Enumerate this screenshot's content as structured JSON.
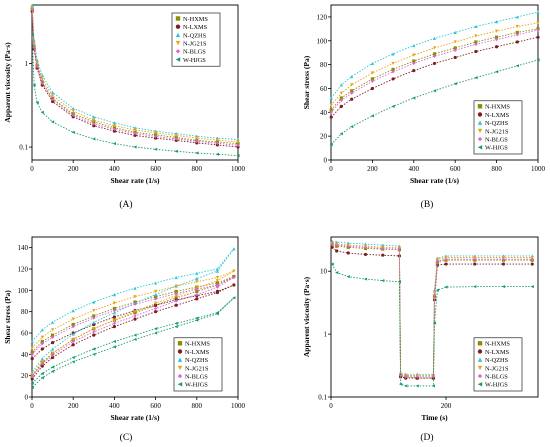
{
  "series_styles": [
    {
      "name": "N-HXMS",
      "color": "#8c8c00",
      "marker": "square"
    },
    {
      "name": "N-LXMS",
      "color": "#7a2020",
      "marker": "circle"
    },
    {
      "name": "N-QZHS",
      "color": "#27c7d7",
      "marker": "triangle-up"
    },
    {
      "name": "N-JG21S",
      "color": "#e8a317",
      "marker": "triangle-down"
    },
    {
      "name": "N-BLGS",
      "color": "#e060e0",
      "marker": "diamond"
    },
    {
      "name": "W-HJGS",
      "color": "#169c6e",
      "marker": "triangle-left"
    }
  ],
  "chart_data": [
    {
      "panel": "(A)",
      "type": "line",
      "xlabel": "Shear rate (1/s)",
      "ylabel": "Apparent viscosity (Pa·s)",
      "xlim": [
        0,
        1000
      ],
      "ylim": [
        0.07,
        5
      ],
      "yscale": "log",
      "xticks": [
        "0",
        "200",
        "400",
        "600",
        "800",
        "1000"
      ],
      "yticks": [
        {
          "v": 0.1,
          "label": "0.1"
        },
        {
          "v": 1,
          "label": "1"
        }
      ],
      "legend": "top-right",
      "series": [
        {
          "name": "N-HXMS",
          "x": [
            1,
            10,
            25,
            50,
            100,
            200,
            300,
            400,
            500,
            600,
            700,
            800,
            900,
            1000
          ],
          "values": [
            4.5,
            1.6,
            0.95,
            0.6,
            0.38,
            0.25,
            0.2,
            0.17,
            0.15,
            0.14,
            0.13,
            0.12,
            0.115,
            0.11
          ]
        },
        {
          "name": "N-LXMS",
          "x": [
            1,
            10,
            25,
            50,
            100,
            200,
            300,
            400,
            500,
            600,
            700,
            800,
            900,
            1000
          ],
          "values": [
            4.2,
            1.5,
            0.88,
            0.55,
            0.35,
            0.23,
            0.18,
            0.155,
            0.138,
            0.128,
            0.12,
            0.112,
            0.106,
            0.1
          ]
        },
        {
          "name": "N-QZHS",
          "x": [
            1,
            10,
            25,
            50,
            100,
            200,
            300,
            400,
            500,
            600,
            700,
            800,
            900,
            1000
          ],
          "values": [
            5.0,
            1.9,
            1.1,
            0.72,
            0.45,
            0.29,
            0.23,
            0.195,
            0.17,
            0.155,
            0.145,
            0.135,
            0.128,
            0.123
          ]
        },
        {
          "name": "N-JG21S",
          "x": [
            1,
            10,
            25,
            50,
            100,
            200,
            300,
            400,
            500,
            600,
            700,
            800,
            900,
            1000
          ],
          "values": [
            4.6,
            1.7,
            1.0,
            0.65,
            0.41,
            0.27,
            0.21,
            0.18,
            0.16,
            0.148,
            0.138,
            0.128,
            0.121,
            0.115
          ]
        },
        {
          "name": "N-BLGS",
          "x": [
            1,
            10,
            25,
            50,
            100,
            200,
            300,
            400,
            500,
            600,
            700,
            800,
            900,
            1000
          ],
          "values": [
            4.4,
            1.55,
            0.92,
            0.58,
            0.37,
            0.24,
            0.19,
            0.163,
            0.145,
            0.134,
            0.125,
            0.117,
            0.111,
            0.105
          ]
        },
        {
          "name": "W-HJGS",
          "x": [
            1,
            10,
            25,
            50,
            100,
            200,
            300,
            400,
            500,
            600,
            700,
            800,
            900,
            1000
          ],
          "values": [
            2.2,
            0.55,
            0.34,
            0.26,
            0.2,
            0.15,
            0.125,
            0.11,
            0.1,
            0.094,
            0.089,
            0.085,
            0.082,
            0.079
          ]
        }
      ]
    },
    {
      "panel": "(B)",
      "type": "line",
      "xlabel": "Shear rate (1/s)",
      "ylabel": "Shear stress (Pa)",
      "xlim": [
        0,
        1000
      ],
      "ylim": [
        0,
        130
      ],
      "xticks": [
        "0",
        "200",
        "400",
        "600",
        "800",
        "1000"
      ],
      "yticks": [
        {
          "v": 0,
          "label": "0"
        },
        {
          "v": 20,
          "label": "20"
        },
        {
          "v": 40,
          "label": "40"
        },
        {
          "v": 60,
          "label": "60"
        },
        {
          "v": 80,
          "label": "80"
        },
        {
          "v": 100,
          "label": "100"
        },
        {
          "v": 120,
          "label": "120"
        }
      ],
      "legend": "bottom-right",
      "series": [
        {
          "name": "N-HXMS",
          "x": [
            1,
            50,
            100,
            200,
            300,
            400,
            500,
            600,
            700,
            800,
            900,
            1000
          ],
          "values": [
            42,
            52,
            58,
            68,
            76,
            83,
            89,
            94,
            99,
            103,
            107,
            110
          ]
        },
        {
          "name": "N-LXMS",
          "x": [
            1,
            50,
            100,
            200,
            300,
            400,
            500,
            600,
            700,
            800,
            900,
            1000
          ],
          "values": [
            36,
            45,
            51,
            60,
            68,
            75,
            81,
            86,
            91,
            95,
            99,
            103
          ]
        },
        {
          "name": "N-QZHS",
          "x": [
            1,
            50,
            100,
            200,
            300,
            400,
            500,
            600,
            700,
            800,
            900,
            1000
          ],
          "values": [
            52,
            63,
            70,
            81,
            89,
            96,
            102,
            107,
            112,
            116,
            120,
            124
          ]
        },
        {
          "name": "N-JG21S",
          "x": [
            1,
            50,
            100,
            200,
            300,
            400,
            500,
            600,
            700,
            800,
            900,
            1000
          ],
          "values": [
            46,
            56,
            63,
            73,
            81,
            88,
            94,
            99,
            104,
            108,
            112,
            115
          ]
        },
        {
          "name": "N-BLGS",
          "x": [
            1,
            50,
            100,
            200,
            300,
            400,
            500,
            600,
            700,
            800,
            900,
            1000
          ],
          "values": [
            40,
            50,
            56,
            66,
            74,
            81,
            87,
            92,
            97,
            101,
            105,
            109
          ]
        },
        {
          "name": "W-HJGS",
          "x": [
            1,
            50,
            100,
            200,
            300,
            400,
            500,
            600,
            700,
            800,
            900,
            1000
          ],
          "values": [
            13,
            22,
            28,
            37,
            45,
            52,
            58,
            64,
            69,
            74,
            79,
            84
          ]
        }
      ]
    },
    {
      "panel": "(C)",
      "type": "line",
      "xlabel": "Shear rate (1/s)",
      "ylabel": "Shear stress (Pa)",
      "xlim": [
        0,
        1000
      ],
      "ylim": [
        0,
        150
      ],
      "xticks": [
        "0",
        "200",
        "400",
        "600",
        "800",
        "1000"
      ],
      "yticks": [
        {
          "v": 0,
          "label": "0"
        },
        {
          "v": 20,
          "label": "20"
        },
        {
          "v": 40,
          "label": "40"
        },
        {
          "v": 60,
          "label": "60"
        },
        {
          "v": 80,
          "label": "80"
        },
        {
          "v": 100,
          "label": "100"
        },
        {
          "v": 120,
          "label": "120"
        },
        {
          "v": 140,
          "label": "140"
        }
      ],
      "legend": "bottom-right",
      "series": [
        {
          "name": "N-HXMS",
          "x": [
            1,
            50,
            100,
            200,
            300,
            400,
            500,
            600,
            700,
            800,
            900,
            980,
            900,
            800,
            700,
            600,
            500,
            400,
            300,
            200,
            100,
            50,
            1
          ],
          "values": [
            42,
            52,
            58,
            68,
            76,
            83,
            89,
            94,
            99,
            103,
            107,
            113,
            105,
            99,
            93,
            86,
            79,
            72,
            64,
            54,
            41,
            32,
            20
          ]
        },
        {
          "name": "N-LXMS",
          "x": [
            1,
            50,
            100,
            200,
            300,
            400,
            500,
            600,
            700,
            800,
            900,
            980,
            900,
            800,
            700,
            600,
            500,
            400,
            300,
            200,
            100,
            50,
            1
          ],
          "values": [
            36,
            45,
            51,
            60,
            68,
            75,
            81,
            86,
            91,
            95,
            99,
            105,
            98,
            92,
            86,
            80,
            73,
            66,
            58,
            49,
            37,
            29,
            17
          ]
        },
        {
          "name": "N-QZHS",
          "x": [
            1,
            50,
            100,
            200,
            300,
            400,
            500,
            600,
            700,
            800,
            900,
            980,
            900,
            800,
            700,
            600,
            500,
            400,
            300,
            200,
            100,
            50,
            1
          ],
          "values": [
            52,
            63,
            70,
            81,
            89,
            96,
            102,
            107,
            112,
            116,
            120,
            139,
            118,
            111,
            104,
            96,
            88,
            79,
            70,
            59,
            45,
            36,
            23
          ]
        },
        {
          "name": "N-JG21S",
          "x": [
            1,
            50,
            100,
            200,
            300,
            400,
            500,
            600,
            700,
            800,
            900,
            980,
            900,
            800,
            700,
            600,
            500,
            400,
            300,
            200,
            100,
            50,
            1
          ],
          "values": [
            46,
            56,
            63,
            73,
            81,
            88,
            94,
            99,
            104,
            108,
            112,
            118,
            109,
            102,
            95,
            88,
            80,
            72,
            64,
            54,
            41,
            33,
            21
          ]
        },
        {
          "name": "N-BLGS",
          "x": [
            1,
            50,
            100,
            200,
            300,
            400,
            500,
            600,
            700,
            800,
            900,
            980,
            900,
            800,
            700,
            600,
            500,
            400,
            300,
            200,
            100,
            50,
            1
          ],
          "values": [
            40,
            50,
            56,
            66,
            74,
            81,
            87,
            92,
            97,
            101,
            105,
            112,
            103,
            96,
            90,
            83,
            76,
            69,
            61,
            52,
            39,
            31,
            19
          ]
        },
        {
          "name": "W-HJGS",
          "x": [
            1,
            50,
            100,
            200,
            300,
            400,
            500,
            600,
            700,
            800,
            900,
            980,
            900,
            800,
            700,
            600,
            500,
            400,
            300,
            200,
            100,
            50,
            1
          ],
          "values": [
            13,
            22,
            28,
            37,
            45,
            52,
            58,
            64,
            69,
            74,
            79,
            93,
            78,
            72,
            66,
            60,
            54,
            47,
            40,
            33,
            24,
            18,
            9
          ]
        }
      ]
    },
    {
      "panel": "(D)",
      "type": "line",
      "xlabel": "Time (s)",
      "ylabel": "Apparent viscosity (Pa·s)",
      "xlim": [
        0,
        360
      ],
      "ylim": [
        0.1,
        35
      ],
      "yscale": "log",
      "xticks": [
        {
          "v": 0,
          "label": "0"
        },
        {
          "v": 200,
          "label": "200"
        }
      ],
      "yticks": [
        {
          "v": 0.1,
          "label": "0.1"
        },
        {
          "v": 1,
          "label": "1"
        },
        {
          "v": 10,
          "label": "10"
        }
      ],
      "legend": "bottom-right",
      "series": [
        {
          "name": "N-HXMS",
          "x": [
            2,
            10,
            30,
            60,
            90,
            119,
            121,
            130,
            150,
            178,
            180,
            185,
            200,
            250,
            300,
            350
          ],
          "values": [
            27,
            25,
            24,
            23,
            22.5,
            22,
            0.22,
            0.21,
            0.2,
            0.2,
            4,
            14,
            15,
            15,
            15,
            15
          ]
        },
        {
          "name": "N-LXMS",
          "x": [
            2,
            10,
            30,
            60,
            90,
            119,
            121,
            130,
            150,
            178,
            180,
            185,
            200,
            250,
            300,
            350
          ],
          "values": [
            24,
            21,
            19.5,
            18.5,
            18,
            17.5,
            0.21,
            0.2,
            0.2,
            0.2,
            3.5,
            12.5,
            13,
            13,
            13,
            13
          ]
        },
        {
          "name": "N-QZHS",
          "x": [
            2,
            10,
            30,
            60,
            90,
            119,
            121,
            130,
            150,
            178,
            180,
            185,
            200,
            250,
            300,
            350
          ],
          "values": [
            30,
            29,
            28,
            27,
            26,
            25,
            0.24,
            0.23,
            0.23,
            0.23,
            5,
            16,
            17.5,
            17.5,
            17.5,
            17.5
          ]
        },
        {
          "name": "N-JG21S",
          "x": [
            2,
            10,
            30,
            60,
            90,
            119,
            121,
            130,
            150,
            178,
            180,
            185,
            200,
            250,
            300,
            350
          ],
          "values": [
            28,
            27,
            26,
            25,
            24,
            23.5,
            0.23,
            0.22,
            0.22,
            0.22,
            4.5,
            15.5,
            16.5,
            16.5,
            16.5,
            16.5
          ]
        },
        {
          "name": "N-BLGS",
          "x": [
            2,
            10,
            30,
            60,
            90,
            119,
            121,
            130,
            150,
            178,
            180,
            185,
            200,
            250,
            300,
            350
          ],
          "values": [
            27.5,
            26,
            25,
            24,
            23,
            22.5,
            0.22,
            0.21,
            0.21,
            0.21,
            4.2,
            14.5,
            15.5,
            15.5,
            15.5,
            15.5
          ]
        },
        {
          "name": "W-HJGS",
          "x": [
            2,
            10,
            30,
            60,
            90,
            119,
            121,
            130,
            150,
            178,
            180,
            185,
            200,
            250,
            300,
            350
          ],
          "values": [
            13,
            9.5,
            8.2,
            7.5,
            7.1,
            6.8,
            0.16,
            0.15,
            0.15,
            0.15,
            1.5,
            5,
            5.6,
            5.7,
            5.7,
            5.7
          ]
        }
      ]
    }
  ]
}
